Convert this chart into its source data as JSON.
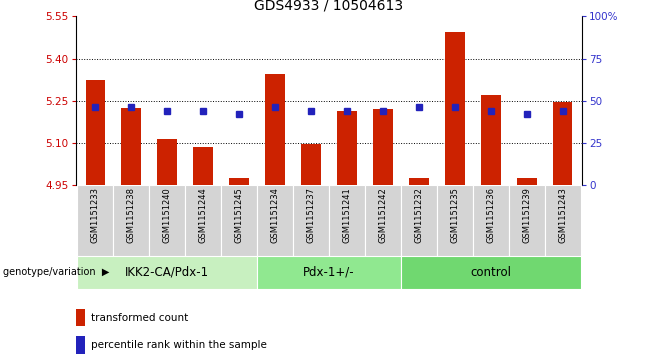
{
  "title": "GDS4933 / 10504613",
  "samples": [
    "GSM1151233",
    "GSM1151238",
    "GSM1151240",
    "GSM1151244",
    "GSM1151245",
    "GSM1151234",
    "GSM1151237",
    "GSM1151241",
    "GSM1151242",
    "GSM1151232",
    "GSM1151235",
    "GSM1151236",
    "GSM1151239",
    "GSM1151243"
  ],
  "red_values": [
    5.325,
    5.225,
    5.115,
    5.085,
    4.975,
    5.345,
    5.095,
    5.215,
    5.22,
    4.975,
    5.495,
    5.27,
    4.975,
    5.245
  ],
  "blue_percentiles": [
    46,
    46,
    44,
    44,
    42,
    46,
    44,
    44,
    44,
    46,
    46,
    44,
    42,
    44
  ],
  "groups": [
    {
      "label": "IKK2-CA/Pdx-1",
      "start": 0,
      "end": 5,
      "color": "#c8f0c0"
    },
    {
      "label": "Pdx-1+/-",
      "start": 5,
      "end": 9,
      "color": "#90e890"
    },
    {
      "label": "control",
      "start": 9,
      "end": 14,
      "color": "#70d870"
    }
  ],
  "ylim_left": [
    4.95,
    5.55
  ],
  "ylim_right": [
    0,
    100
  ],
  "left_ticks": [
    4.95,
    5.1,
    5.25,
    5.4,
    5.55
  ],
  "right_ticks": [
    0,
    25,
    50,
    75,
    100
  ],
  "left_color": "#cc0000",
  "right_color": "#3333cc",
  "bar_color": "#cc2200",
  "dot_color": "#2222bb",
  "legend_red": "transformed count",
  "legend_blue": "percentile rank within the sample",
  "genotype_label": "genotype/variation",
  "title_fontsize": 10,
  "tick_fontsize": 7.5,
  "sample_fontsize": 6,
  "group_label_fontsize": 8.5
}
